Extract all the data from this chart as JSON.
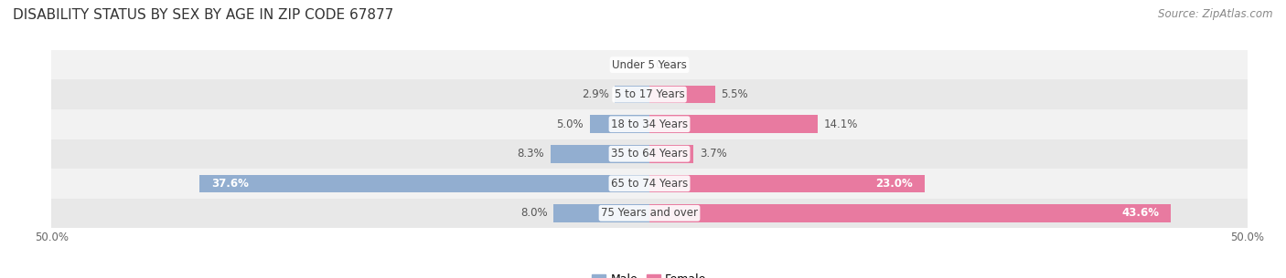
{
  "title": "DISABILITY STATUS BY SEX BY AGE IN ZIP CODE 67877",
  "source": "Source: ZipAtlas.com",
  "categories": [
    "Under 5 Years",
    "5 to 17 Years",
    "18 to 34 Years",
    "35 to 64 Years",
    "65 to 74 Years",
    "75 Years and over"
  ],
  "male_values": [
    0.0,
    2.9,
    5.0,
    8.3,
    37.6,
    8.0
  ],
  "female_values": [
    0.0,
    5.5,
    14.1,
    3.7,
    23.0,
    43.6
  ],
  "male_color": "#92aed0",
  "female_color": "#e87aa0",
  "row_bg_even": "#f2f2f2",
  "row_bg_odd": "#e8e8e8",
  "axis_min": -50.0,
  "axis_max": 50.0,
  "bar_height": 0.6,
  "label_fontsize": 9,
  "title_fontsize": 11,
  "source_fontsize": 8.5,
  "axis_label_fontsize": 8.5,
  "category_fontsize": 8.5,
  "value_fontsize": 8.5,
  "value_color": "#555555",
  "category_color": "#444444",
  "title_color": "#333333",
  "source_color": "#888888"
}
